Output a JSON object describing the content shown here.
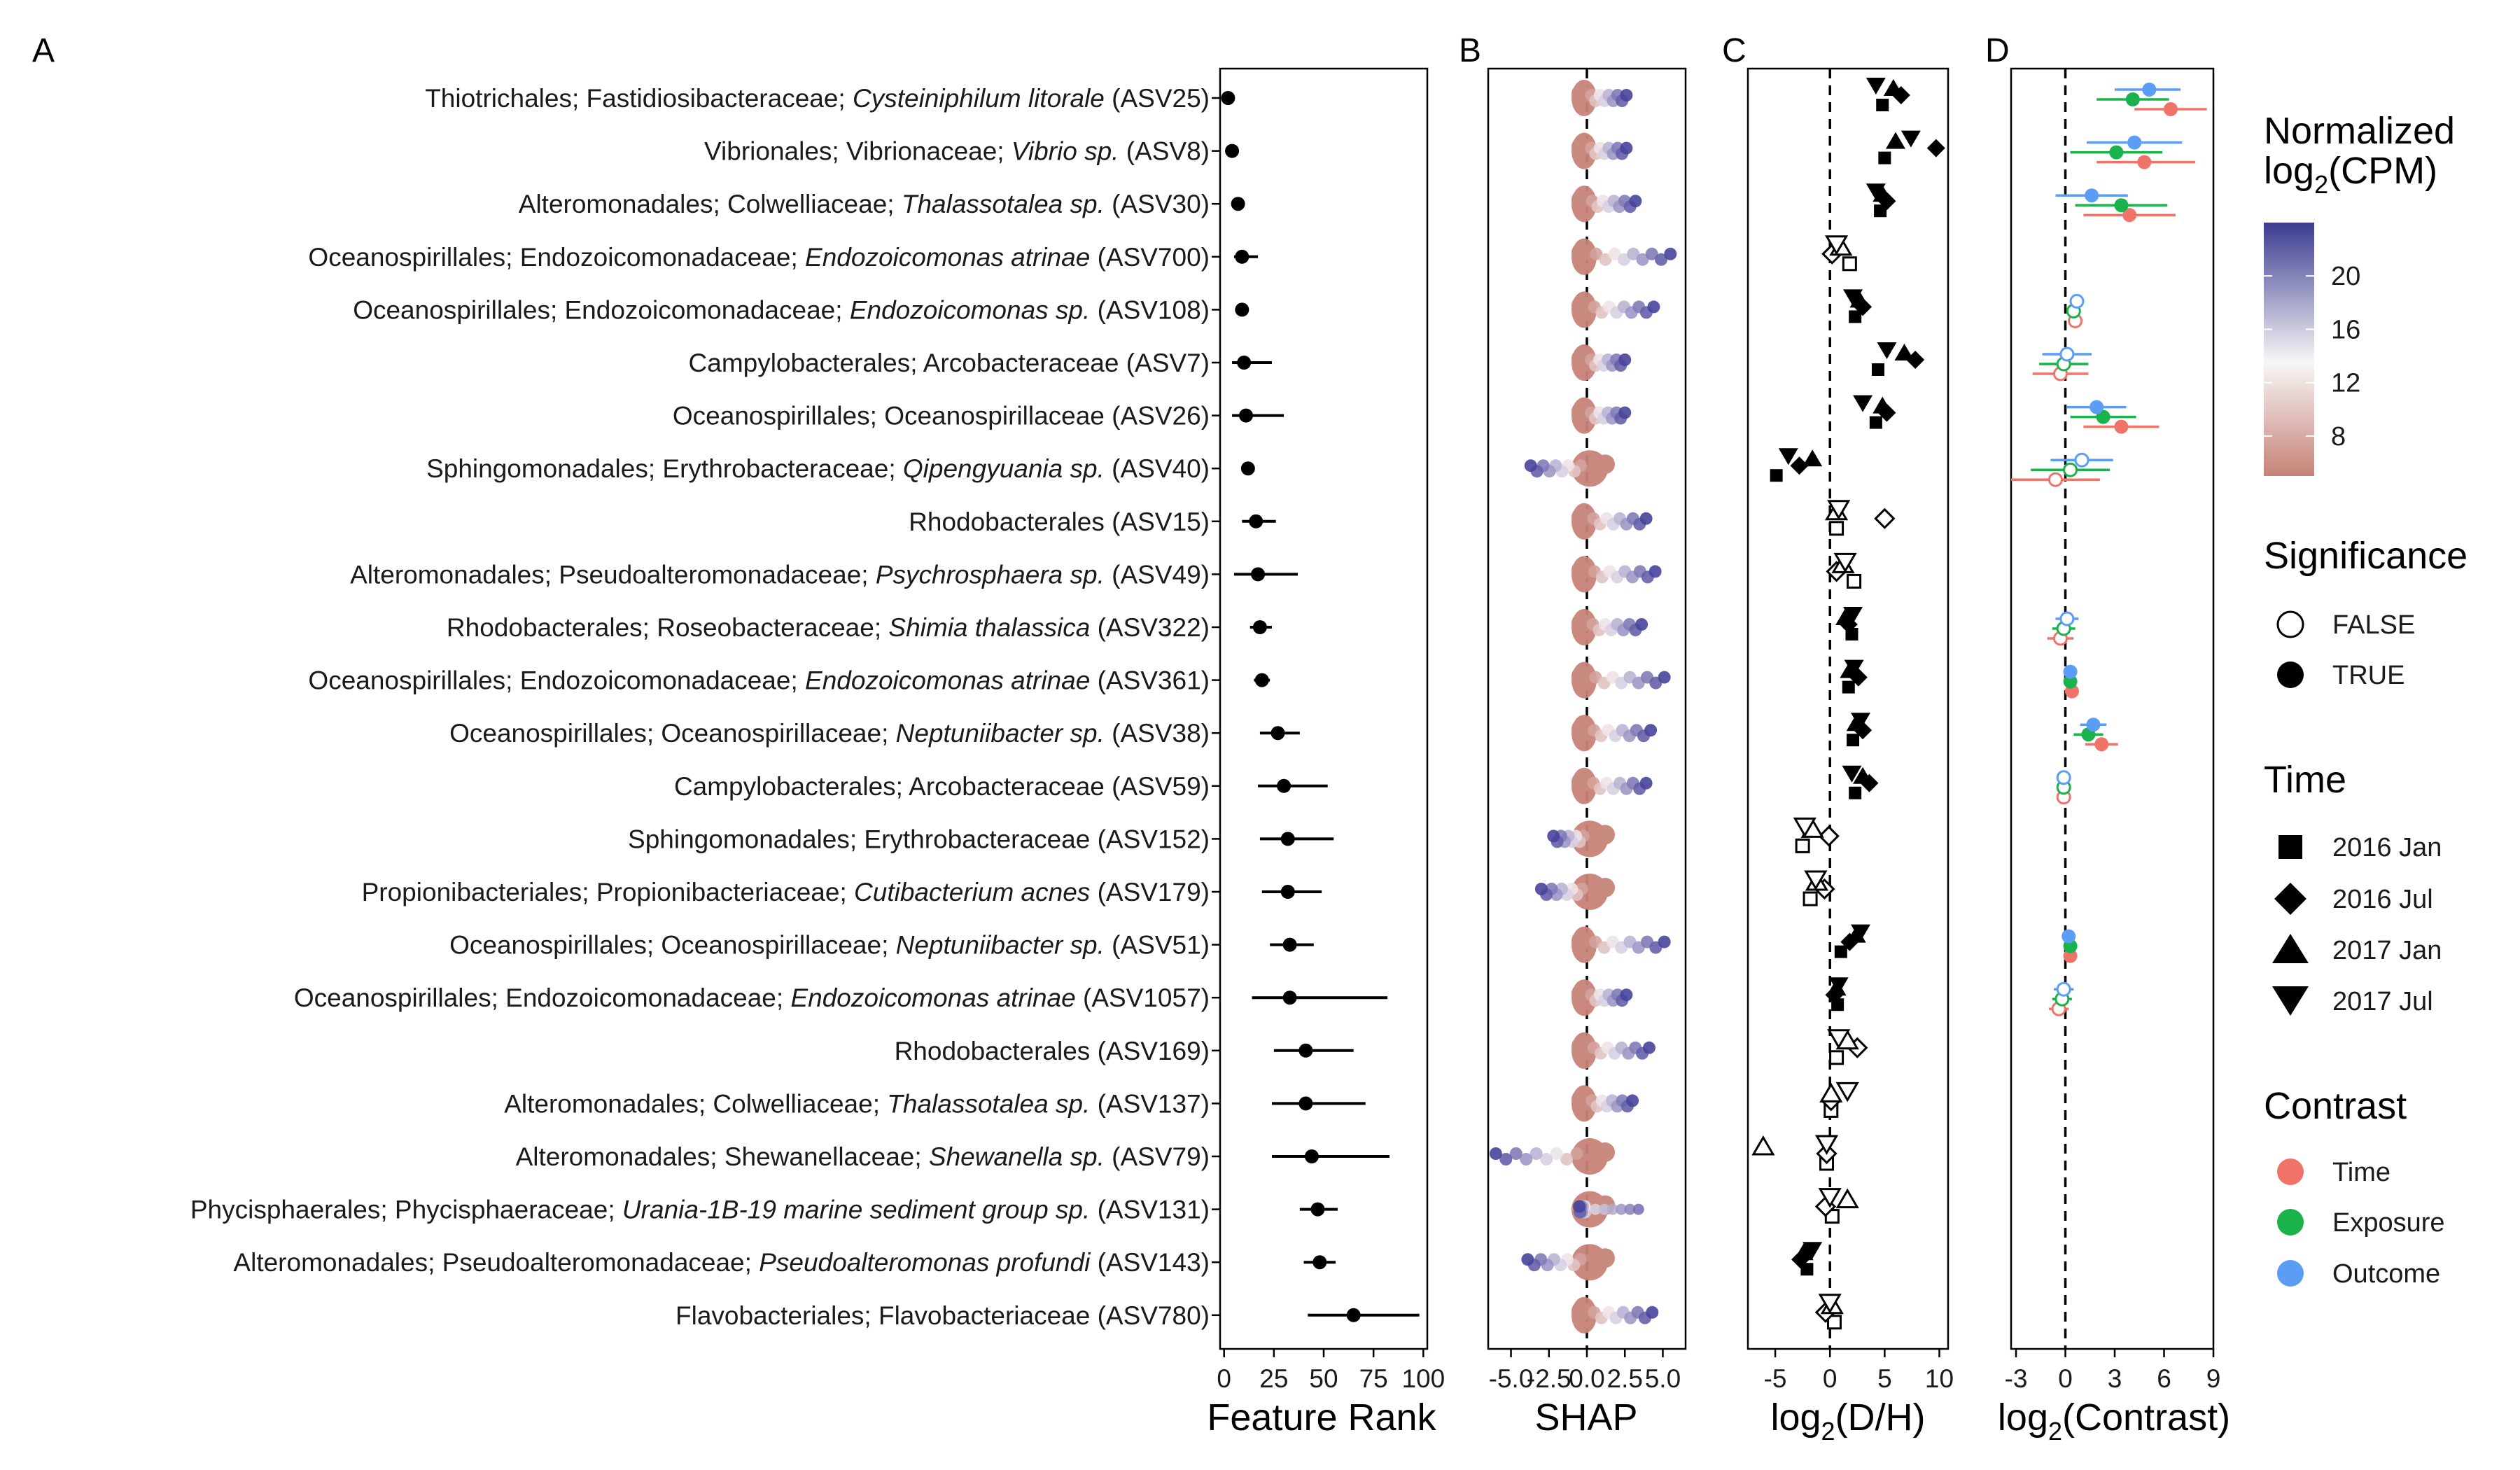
{
  "chart_data": [
    {
      "panel": "A",
      "type": "scatter",
      "xlabel": "Feature Rank",
      "xlim": [
        -2,
        102
      ],
      "xticks": [
        "0",
        "25",
        "50",
        "75",
        "100"
      ],
      "features": [
        {
          "pre": "Thiotrichales; Fastidiosibacteraceae; ",
          "it": "Cysteiniphilum litorale",
          "post": " (ASV25)",
          "rank": 2,
          "lo": 1,
          "hi": 3
        },
        {
          "pre": "Vibrionales; Vibrionaceae; ",
          "it": "Vibrio sp.",
          "post": " (ASV8)",
          "rank": 4,
          "lo": 3,
          "hi": 5
        },
        {
          "pre": "Alteromonadales; Colwelliaceae; ",
          "it": "Thalassotalea sp.",
          "post": " (ASV30)",
          "rank": 7,
          "lo": 5,
          "hi": 10
        },
        {
          "pre": "Oceanospirillales; Endozoicomonadaceae; ",
          "it": "Endozoicomonas atrinae",
          "post": " (ASV700)",
          "rank": 9,
          "lo": 5,
          "hi": 17
        },
        {
          "pre": "Oceanospirillales; Endozoicomonadaceae; ",
          "it": "Endozoicomonas sp.",
          "post": " (ASV108)",
          "rank": 9,
          "lo": 6,
          "hi": 12
        },
        {
          "pre": "Campylobacterales; Arcobacteraceae (ASV7)",
          "it": "",
          "post": "",
          "rank": 10,
          "lo": 4,
          "hi": 24
        },
        {
          "pre": "Oceanospirillales; Oceanospirillaceae (ASV26)",
          "it": "",
          "post": "",
          "rank": 11,
          "lo": 4,
          "hi": 30
        },
        {
          "pre": "Sphingomonadales; Erythrobacteraceae; ",
          "it": "Qipengyuania sp.",
          "post": " (ASV40)",
          "rank": 12,
          "lo": 9,
          "hi": 15
        },
        {
          "pre": "Rhodobacterales (ASV15)",
          "it": "",
          "post": "",
          "rank": 16,
          "lo": 9,
          "hi": 26
        },
        {
          "pre": "Alteromonadales; Pseudoalteromonadaceae; ",
          "it": "Psychrosphaera sp.",
          "post": " (ASV49)",
          "rank": 17,
          "lo": 5,
          "hi": 37
        },
        {
          "pre": "Rhodobacterales; Roseobacteraceae; ",
          "it": "Shimia thalassica",
          "post": " (ASV322)",
          "rank": 18,
          "lo": 13,
          "hi": 24
        },
        {
          "pre": "Oceanospirillales; Endozoicomonadaceae; ",
          "it": "Endozoicomonas atrinae",
          "post": " (ASV361)",
          "rank": 19,
          "lo": 15,
          "hi": 23
        },
        {
          "pre": "Oceanospirillales; Oceanospirillaceae; ",
          "it": "Neptuniibacter sp.",
          "post": " (ASV38)",
          "rank": 27,
          "lo": 18,
          "hi": 38
        },
        {
          "pre": "Campylobacterales; Arcobacteraceae (ASV59)",
          "it": "",
          "post": "",
          "rank": 30,
          "lo": 17,
          "hi": 52
        },
        {
          "pre": "Sphingomonadales; Erythrobacteraceae (ASV152)",
          "it": "",
          "post": "",
          "rank": 32,
          "lo": 18,
          "hi": 55
        },
        {
          "pre": "Propionibacteriales; Propionibacteriaceae; ",
          "it": "Cutibacterium acnes",
          "post": " (ASV179)",
          "rank": 32,
          "lo": 19,
          "hi": 49
        },
        {
          "pre": "Oceanospirillales; Oceanospirillaceae; ",
          "it": "Neptuniibacter sp.",
          "post": " (ASV51)",
          "rank": 33,
          "lo": 23,
          "hi": 45
        },
        {
          "pre": "Oceanospirillales; Endozoicomonadaceae; ",
          "it": "Endozoicomonas atrinae",
          "post": " (ASV1057)",
          "rank": 33,
          "lo": 14,
          "hi": 82
        },
        {
          "pre": "Rhodobacterales (ASV169)",
          "it": "",
          "post": "",
          "rank": 41,
          "lo": 25,
          "hi": 65
        },
        {
          "pre": "Alteromonadales; Colwelliaceae; ",
          "it": "Thalassotalea sp.",
          "post": " (ASV137)",
          "rank": 41,
          "lo": 24,
          "hi": 71
        },
        {
          "pre": "Alteromonadales; Shewanellaceae; ",
          "it": "Shewanella sp.",
          "post": " (ASV79)",
          "rank": 44,
          "lo": 24,
          "hi": 83
        },
        {
          "pre": "Phycisphaerales; Phycisphaeraceae; ",
          "it": "Urania-1B-19 marine sediment group sp.",
          "post": " (ASV131)",
          "rank": 47,
          "lo": 38,
          "hi": 57
        },
        {
          "pre": "Alteromonadales; Pseudoalteromonadaceae; ",
          "it": "Pseudoalteromonas profundi",
          "post": " (ASV143)",
          "rank": 48,
          "lo": 40,
          "hi": 56
        },
        {
          "pre": "Flavobacteriales; Flavobacteriaceae (ASV780)",
          "it": "",
          "post": "",
          "rank": 65,
          "lo": 42,
          "hi": 98
        }
      ]
    },
    {
      "panel": "B",
      "type": "scatter",
      "xlabel": "SHAP",
      "xticks": [
        "-5.0",
        "-2.5",
        "0.0",
        "2.5",
        "5.0"
      ],
      "xlim": [
        -6.5,
        6.5
      ],
      "dashed_zero": true,
      "color_scale": {
        "low": "#c78277",
        "mid": "#f7f7f7",
        "high": "#3c3b90",
        "range": [
          5,
          24
        ]
      },
      "rows": [
        {
          "neg": 0.0,
          "pos": 2.6,
          "flip": false
        },
        {
          "neg": 0.0,
          "pos": 2.6,
          "flip": false
        },
        {
          "neg": 0.0,
          "pos": 3.2,
          "flip": false
        },
        {
          "neg": 0.0,
          "pos": 5.5,
          "flip": false
        },
        {
          "neg": 0.0,
          "pos": 4.4,
          "flip": false
        },
        {
          "neg": 0.0,
          "pos": 2.5,
          "flip": false
        },
        {
          "neg": 0.0,
          "pos": 2.5,
          "flip": false
        },
        {
          "neg": -3.7,
          "pos": 0.0,
          "flip": true
        },
        {
          "neg": 0.0,
          "pos": 3.9,
          "flip": false
        },
        {
          "neg": 0.0,
          "pos": 4.5,
          "flip": false
        },
        {
          "neg": 0.0,
          "pos": 3.6,
          "flip": false
        },
        {
          "neg": 0.0,
          "pos": 5.1,
          "flip": false
        },
        {
          "neg": 0.0,
          "pos": 4.2,
          "flip": false
        },
        {
          "neg": 0.0,
          "pos": 3.9,
          "flip": false
        },
        {
          "neg": -2.2,
          "pos": 0.0,
          "flip": true
        },
        {
          "neg": -3.0,
          "pos": 0.0,
          "flip": true
        },
        {
          "neg": 0.0,
          "pos": 5.1,
          "flip": false
        },
        {
          "neg": 0.0,
          "pos": 2.6,
          "flip": false
        },
        {
          "neg": 0.0,
          "pos": 4.1,
          "flip": false
        },
        {
          "neg": 0.0,
          "pos": 3.0,
          "flip": false
        },
        {
          "neg": -6.0,
          "pos": 0.0,
          "flip": true
        },
        {
          "neg": -0.5,
          "pos": 3.4,
          "flip": true
        },
        {
          "neg": -3.9,
          "pos": 0.0,
          "flip": true
        },
        {
          "neg": 0.0,
          "pos": 4.3,
          "flip": false
        }
      ]
    },
    {
      "panel": "C",
      "type": "scatter",
      "xlabel": "log2(D/H)",
      "xticks": [
        "-5",
        "0",
        "5",
        "10"
      ],
      "xlim": [
        -7.5,
        10.8
      ],
      "dashed_zero": true,
      "series": [
        "2016 Jan",
        "2016 Jul",
        "2017 Jan",
        "2017 Jul"
      ],
      "rows": [
        {
          "s": [
            4.8,
            6.5,
            5.8,
            4.2
          ],
          "sig": true
        },
        {
          "s": [
            5.0,
            9.7,
            6.0,
            7.4
          ],
          "sig": true
        },
        {
          "s": [
            4.6,
            5.2,
            4.8,
            4.2
          ],
          "sig": true
        },
        {
          "s": [
            1.8,
            0.2,
            1.0,
            0.6
          ],
          "sig": false
        },
        {
          "s": [
            2.3,
            3.0,
            2.7,
            2.1
          ],
          "sig": true
        },
        {
          "s": [
            4.4,
            7.8,
            6.8,
            5.2
          ],
          "sig": true
        },
        {
          "s": [
            4.2,
            5.2,
            4.8,
            3.0
          ],
          "sig": true
        },
        {
          "s": [
            -4.9,
            -2.8,
            -1.6,
            -3.8
          ],
          "sig": true
        },
        {
          "s": [
            0.6,
            5.0,
            0.6,
            0.8
          ],
          "sig": false
        },
        {
          "s": [
            2.2,
            0.6,
            1.2,
            1.4
          ],
          "sig": false
        },
        {
          "s": [
            2.0,
            1.7,
            1.4,
            2.1
          ],
          "sig": true
        },
        {
          "s": [
            1.7,
            2.6,
            1.8,
            2.2
          ],
          "sig": true
        },
        {
          "s": [
            2.1,
            3.0,
            2.4,
            2.8
          ],
          "sig": true
        },
        {
          "s": [
            2.3,
            3.6,
            3.0,
            2.0
          ],
          "sig": true
        },
        {
          "s": [
            -2.5,
            -0.1,
            -1.6,
            -2.3
          ],
          "sig": false
        },
        {
          "s": [
            -1.8,
            -0.5,
            -1.2,
            -1.3
          ],
          "sig": false
        },
        {
          "s": [
            1.0,
            1.8,
            2.4,
            2.8
          ],
          "sig": true
        },
        {
          "s": [
            0.7,
            0.4,
            0.6,
            0.8
          ],
          "sig": true
        },
        {
          "s": [
            0.6,
            2.5,
            1.6,
            0.8
          ],
          "sig": false
        },
        {
          "s": [
            0.1,
            0.1,
            0.1,
            1.6
          ],
          "sig": false
        },
        {
          "s": [
            -0.3,
            -0.3,
            -6.1,
            -0.3
          ],
          "sig": false
        },
        {
          "s": [
            0.2,
            -0.4,
            1.6,
            0.0
          ],
          "sig": false
        },
        {
          "s": [
            -2.1,
            -2.7,
            -2.4,
            -1.6
          ],
          "sig": true
        },
        {
          "s": [
            0.4,
            -0.4,
            0.2,
            0.0
          ],
          "sig": false
        }
      ]
    },
    {
      "panel": "D",
      "type": "scatter",
      "xlabel": "log2(Contrast)",
      "xticks": [
        "-3",
        "0",
        "3",
        "6",
        "9"
      ],
      "xlim": [
        -3.3,
        9.0
      ],
      "dashed_zero": true,
      "series": [
        {
          "name": "Time",
          "color": "#f0736a"
        },
        {
          "name": "Exposure",
          "color": "#19b24b"
        },
        {
          "name": "Outcome",
          "color": "#5b9cf5"
        }
      ],
      "rows": [
        {
          "vals": [
            [
              6.4,
              4.2,
              8.6
            ],
            [
              4.1,
              1.9,
              6.3
            ],
            [
              5.1,
              3.0,
              7.0
            ]
          ],
          "sig": true
        },
        {
          "vals": [
            [
              4.8,
              1.9,
              7.9
            ],
            [
              3.1,
              0.3,
              5.9
            ],
            [
              4.2,
              1.3,
              7.1
            ]
          ],
          "sig": true
        },
        {
          "vals": [
            [
              3.9,
              1.1,
              6.7
            ],
            [
              3.4,
              0.6,
              6.2
            ],
            [
              1.6,
              -0.6,
              3.8
            ]
          ],
          "sig": true
        },
        null,
        {
          "vals": [
            [
              0.6,
              0.2,
              1.0
            ],
            [
              0.5,
              0.2,
              0.8
            ],
            [
              0.7,
              0.3,
              1.1
            ]
          ],
          "sig": false
        },
        {
          "vals": [
            [
              -0.3,
              -2.0,
              1.4
            ],
            [
              -0.1,
              -1.6,
              1.4
            ],
            [
              0.1,
              -1.4,
              1.6
            ]
          ],
          "sig": false
        },
        {
          "vals": [
            [
              3.4,
              1.1,
              5.7
            ],
            [
              2.3,
              0.3,
              4.3
            ],
            [
              1.9,
              0.1,
              3.7
            ]
          ],
          "sig": true
        },
        {
          "vals": [
            [
              -0.6,
              -3.3,
              2.1
            ],
            [
              0.3,
              -2.1,
              2.7
            ],
            [
              1.0,
              -0.9,
              2.9
            ]
          ],
          "sig": false
        },
        null,
        null,
        {
          "vals": [
            [
              -0.3,
              -1.1,
              0.5
            ],
            [
              -0.1,
              -0.8,
              0.6
            ],
            [
              0.1,
              -0.6,
              0.8
            ]
          ],
          "sig": false
        },
        {
          "vals": [
            [
              0.4,
              0.2,
              0.6
            ],
            [
              0.3,
              0.1,
              0.5
            ],
            [
              0.3,
              0.1,
              0.5
            ]
          ],
          "sig": true
        },
        {
          "vals": [
            [
              2.2,
              1.2,
              3.2
            ],
            [
              1.4,
              0.5,
              2.3
            ],
            [
              1.7,
              0.9,
              2.5
            ]
          ],
          "sig": true
        },
        {
          "vals": [
            [
              -0.1,
              -0.5,
              0.3
            ],
            [
              -0.1,
              -0.5,
              0.3
            ],
            [
              -0.1,
              -0.5,
              0.3
            ]
          ],
          "sig": false
        },
        null,
        null,
        {
          "vals": [
            [
              0.3,
              0.1,
              0.5
            ],
            [
              0.3,
              0.1,
              0.5
            ],
            [
              0.2,
              0.0,
              0.4
            ]
          ],
          "sig": true
        },
        {
          "vals": [
            [
              -0.4,
              -1.0,
              0.2
            ],
            [
              -0.2,
              -0.8,
              0.4
            ],
            [
              -0.1,
              -0.7,
              0.5
            ]
          ],
          "sig": false
        },
        null,
        null,
        null,
        null,
        null,
        null
      ]
    }
  ],
  "panels": {
    "a": "A",
    "b": "B",
    "c": "C",
    "d": "D"
  },
  "axis_titles": {
    "a": "Feature Rank",
    "b": "SHAP",
    "c_main": "log",
    "c_sub": "2",
    "c_rest": "(D/H)",
    "d_main": "log",
    "d_sub": "2",
    "d_rest": "(Contrast)"
  },
  "legend": {
    "cpm_title_1": "Normalized",
    "cpm_title_2a": "log",
    "cpm_title_2b": "2",
    "cpm_title_2c": "(CPM)",
    "cpm_ticks": [
      "20",
      "16",
      "12",
      "8"
    ],
    "significance_title": "Significance",
    "significance_items": [
      "FALSE",
      "TRUE"
    ],
    "time_title": "Time",
    "time_items": [
      "2016 Jan",
      "2016 Jul",
      "2017 Jan",
      "2017 Jul"
    ],
    "contrast_title": "Contrast",
    "contrast_items": [
      "Time",
      "Exposure",
      "Outcome"
    ]
  },
  "colors": {
    "time": "#f0736a",
    "exposure": "#19b24b",
    "outcome": "#5b9cf5",
    "shap_low": "#c78277",
    "shap_high": "#3c3b90"
  }
}
